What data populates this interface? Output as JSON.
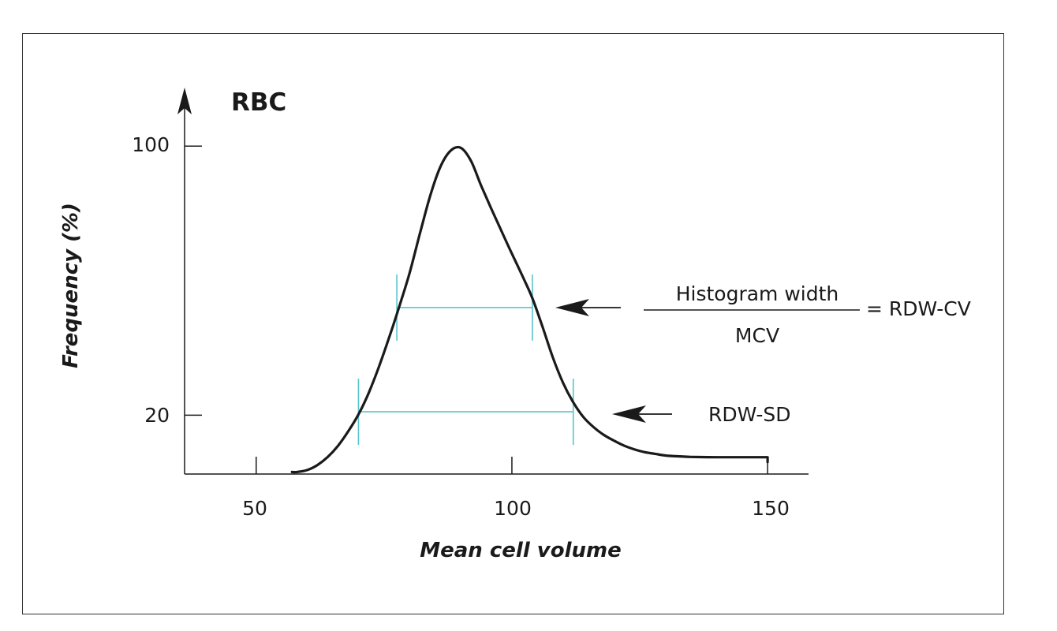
{
  "chart_data": {
    "type": "line",
    "title": "RBC",
    "xlabel": "Mean cell volume",
    "ylabel": "Frequency (%)",
    "x_ticks": [
      50,
      100,
      150
    ],
    "x_tick_labels": [
      "50",
      "100",
      "150"
    ],
    "y_ticks": [
      20,
      100
    ],
    "y_tick_labels": [
      "20",
      "100"
    ],
    "xlim": [
      36,
      158
    ],
    "ylim": [
      2.5,
      116
    ],
    "grid": false,
    "series": [
      {
        "x": [
          57,
          58,
          60,
          62,
          64,
          66,
          68,
          70,
          72,
          74,
          76,
          78,
          80,
          82,
          84,
          86,
          88,
          90,
          92,
          94,
          96,
          98,
          100,
          102,
          104,
          106,
          108,
          110,
          112,
          114,
          116,
          118,
          120,
          122,
          124,
          126,
          128,
          130,
          132,
          135,
          140,
          145,
          150
        ],
        "y": [
          3.1,
          3.1,
          3.7,
          5.2,
          7.6,
          10.9,
          15.2,
          20.2,
          26.6,
          34.4,
          43.1,
          52.4,
          62.3,
          73.9,
          85.1,
          93.8,
          98.6,
          99.5,
          95.6,
          88.2,
          81.3,
          74.6,
          68.0,
          61.6,
          54.8,
          46.2,
          37.2,
          29.6,
          23.8,
          19.4,
          16.4,
          14.1,
          12.4,
          10.9,
          9.8,
          9.0,
          8.5,
          8.0,
          7.8,
          7.6,
          7.5,
          7.5,
          7.5
        ]
      }
    ],
    "segments": [
      {
        "x0": 77.5,
        "x1": 104,
        "y": 52
      },
      {
        "x0": 70,
        "x1": 112,
        "y": 21
      }
    ],
    "annotations": {
      "fraction_numerator": "Histogram width",
      "fraction_denominator": "MCV",
      "fraction_result": "= RDW-CV",
      "sd_label": "RDW-SD"
    },
    "colors": {
      "curve": "#1a1a1a",
      "segments": "#5bc4cc",
      "axis": "#1a1a1a"
    }
  }
}
